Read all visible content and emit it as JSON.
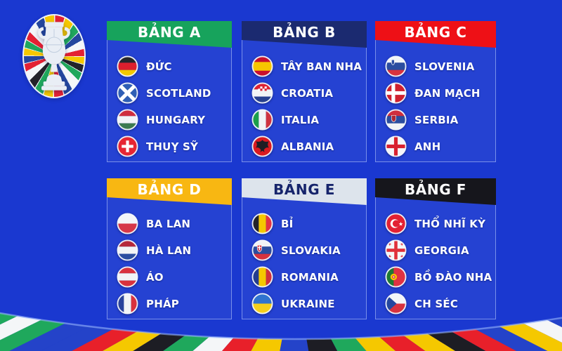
{
  "page": {
    "background": "#1a38d0"
  },
  "logo": {
    "label": "euro-trophy-flag-ring-logo",
    "trophy_color": "#e9eef5",
    "ring_colors": [
      "#e32133",
      "#f5c800",
      "#1fa85c",
      "#24479e",
      "#f4f6f8",
      "#e32133",
      "#f5c800",
      "#23232a",
      "#1fa85c",
      "#f4f6f8",
      "#24479e",
      "#e32133",
      "#f5c800",
      "#1fa85c",
      "#23232a",
      "#f4f6f8",
      "#e32133",
      "#24479e",
      "#f5c800",
      "#1fa85c",
      "#e32133",
      "#f4f6f8",
      "#24479e",
      "#f5c800"
    ]
  },
  "groups": [
    {
      "id": "A",
      "name": "BẢNG A",
      "color": "#17a35c",
      "text_color": "#ffffff",
      "teams": [
        {
          "name": "ĐỨC",
          "flag": "de",
          "flag_icon": "germany-flag-icon"
        },
        {
          "name": "SCOTLAND",
          "flag": "scot",
          "flag_icon": "scotland-flag-icon"
        },
        {
          "name": "HUNGARY",
          "flag": "hu",
          "flag_icon": "hungary-flag-icon"
        },
        {
          "name": "THUỴ SỸ",
          "flag": "ch",
          "flag_icon": "switzerland-flag-icon"
        }
      ]
    },
    {
      "id": "B",
      "name": "BẢNG B",
      "color": "#1b2a70",
      "text_color": "#ffffff",
      "teams": [
        {
          "name": "TÂY BAN NHA",
          "flag": "es",
          "flag_icon": "spain-flag-icon"
        },
        {
          "name": "CROATIA",
          "flag": "hr",
          "flag_icon": "croatia-flag-icon"
        },
        {
          "name": "ITALIA",
          "flag": "it",
          "flag_icon": "italy-flag-icon"
        },
        {
          "name": "ALBANIA",
          "flag": "al",
          "flag_icon": "albania-flag-icon"
        }
      ]
    },
    {
      "id": "C",
      "name": "BẢNG C",
      "color": "#ee1016",
      "text_color": "#ffffff",
      "teams": [
        {
          "name": "SLOVENIA",
          "flag": "si",
          "flag_icon": "slovenia-flag-icon"
        },
        {
          "name": "ĐAN MẠCH",
          "flag": "dk",
          "flag_icon": "denmark-flag-icon"
        },
        {
          "name": "SERBIA",
          "flag": "rs",
          "flag_icon": "serbia-flag-icon"
        },
        {
          "name": "ANH",
          "flag": "en",
          "flag_icon": "england-flag-icon"
        }
      ]
    },
    {
      "id": "D",
      "name": "BẢNG D",
      "color": "#f8b712",
      "text_color": "#ffffff",
      "teams": [
        {
          "name": "BA LAN",
          "flag": "pl",
          "flag_icon": "poland-flag-icon"
        },
        {
          "name": "HÀ LAN",
          "flag": "nl",
          "flag_icon": "netherlands-flag-icon"
        },
        {
          "name": "ÁO",
          "flag": "at",
          "flag_icon": "austria-flag-icon"
        },
        {
          "name": "PHÁP",
          "flag": "fr",
          "flag_icon": "france-flag-icon"
        }
      ]
    },
    {
      "id": "E",
      "name": "BẢNG E",
      "color": "#dde4ec",
      "text_color": "#16246b",
      "teams": [
        {
          "name": "BỈ",
          "flag": "be",
          "flag_icon": "belgium-flag-icon"
        },
        {
          "name": "SLOVAKIA",
          "flag": "sk",
          "flag_icon": "slovakia-flag-icon"
        },
        {
          "name": "ROMANIA",
          "flag": "ro",
          "flag_icon": "romania-flag-icon"
        },
        {
          "name": "UKRAINE",
          "flag": "ua",
          "flag_icon": "ukraine-flag-icon"
        }
      ]
    },
    {
      "id": "F",
      "name": "BẢNG F",
      "color": "#16161c",
      "text_color": "#ffffff",
      "teams": [
        {
          "name": "THỔ NHĨ KỲ",
          "flag": "tr",
          "flag_icon": "turkey-flag-icon"
        },
        {
          "name": "GEORGIA",
          "flag": "ge",
          "flag_icon": "georgia-flag-icon"
        },
        {
          "name": "BỒ ĐÀO NHA",
          "flag": "pt",
          "flag_icon": "portugal-flag-icon"
        },
        {
          "name": "CH SÉC",
          "flag": "cz",
          "flag_icon": "czech-flag-icon"
        }
      ]
    }
  ],
  "footer_bunting": {
    "colors": [
      "#f5c800",
      "#1fa85c",
      "#f4f6f8",
      "#1fa85c",
      "#2443c9",
      "#2443c9",
      "#e8202a",
      "#f5c800",
      "#1d1d24",
      "#1fa85c",
      "#f4f6f8",
      "#e8202a",
      "#f5c800",
      "#2443c9",
      "#1d1d24",
      "#1fa85c",
      "#f5c800",
      "#e8202a",
      "#f5c800",
      "#1d1d24",
      "#e8202a",
      "#2443c9",
      "#f5c800",
      "#f4f6f8",
      "#2443c9",
      "#e8202a",
      "#1fa85c"
    ]
  }
}
